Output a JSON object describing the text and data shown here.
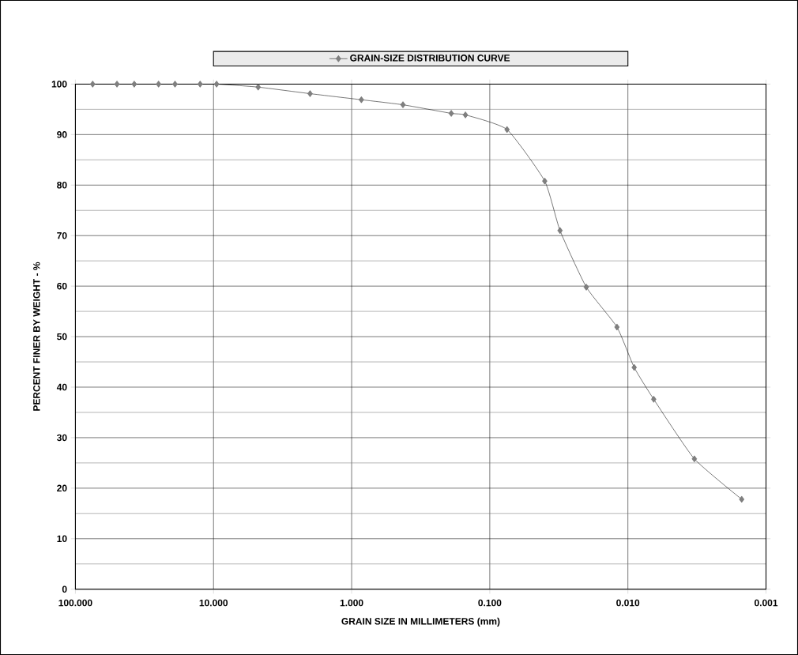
{
  "chart_data": {
    "type": "line",
    "xlabel": "GRAIN SIZE IN MILLIMETERS  (mm)",
    "ylabel": "PERCENT FINER BY WEIGHT - %",
    "log": "x",
    "grid": true,
    "legend": "top",
    "marker": "diamond",
    "line_style": "solid",
    "xlim": [
      100,
      0.001
    ],
    "xticks": [
      {
        "value": 100,
        "label": "100.000"
      },
      {
        "value": 10,
        "label": "10.000"
      },
      {
        "value": 1,
        "label": "1.000"
      },
      {
        "value": 0.1,
        "label": "0.100"
      },
      {
        "value": 0.01,
        "label": "0.010"
      },
      {
        "value": 0.001,
        "label": "0.001"
      }
    ],
    "ylim": [
      0,
      100
    ],
    "yticks": [
      0,
      10,
      20,
      30,
      40,
      50,
      60,
      70,
      80,
      90,
      100
    ],
    "series": [
      {
        "name": "GRAIN-SIZE DISTRIBUTION CURVE",
        "color": "#808080",
        "x": [
          75,
          50,
          37.5,
          25,
          19,
          12.5,
          9.5,
          4.75,
          2.0,
          0.85,
          0.425,
          0.19,
          0.15,
          0.075,
          0.04,
          0.031,
          0.02,
          0.012,
          0.009,
          0.0065,
          0.0033,
          0.0015
        ],
        "values": [
          100,
          100,
          100,
          100,
          100,
          100,
          100,
          99.4,
          98.1,
          96.9,
          95.9,
          94.2,
          93.9,
          91,
          80.8,
          71,
          59.8,
          51.9,
          43.9,
          37.6,
          25.8,
          17.8
        ]
      }
    ]
  }
}
